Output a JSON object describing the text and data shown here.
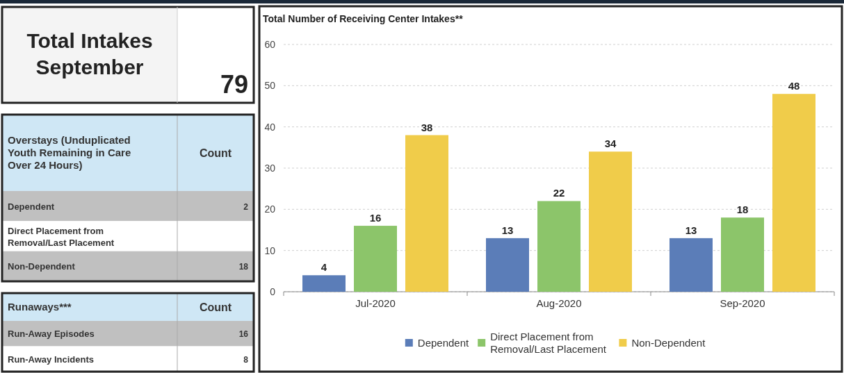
{
  "chart_data": [
    {
      "type": "other",
      "title": "Total Intakes September",
      "values": [
        79
      ],
      "data_labels": true
    },
    {
      "type": "other",
      "title": "Overstays (Unduplicated Youth Remaining in Care Over 24 Hours)",
      "annotations": [
        "Count"
      ],
      "categories": [
        "Dependent",
        "Direct Placement from Removal/Last Placement",
        "Non-Dependent"
      ],
      "values": [
        2,
        null,
        18
      ],
      "data_labels": true
    },
    {
      "type": "other",
      "title": "Runaways***",
      "annotations": [
        "Count"
      ],
      "categories": [
        "Run-Away Episodes",
        "Run-Away Incidents"
      ],
      "values": [
        16,
        8
      ],
      "data_labels": true
    },
    {
      "type": "bar",
      "title": "Total Number of Receiving Center Intakes**",
      "categories": [
        "Jul-2020",
        "Aug-2020",
        "Sep-2020"
      ],
      "series": [
        {
          "name": "Dependent",
          "color": "#5b7db8",
          "values": [
            4,
            13,
            13
          ]
        },
        {
          "name": "Direct Placement from Removal/Last Placement",
          "color": "#8cc56a",
          "values": [
            16,
            22,
            18
          ]
        },
        {
          "name": "Non-Dependent",
          "color": "#f0cc4a",
          "values": [
            38,
            34,
            48
          ]
        }
      ],
      "ylim": [
        0,
        60
      ],
      "yticks": [
        0,
        10,
        20,
        30,
        40,
        50,
        60
      ],
      "grid": "y",
      "legend": "bottom",
      "data_labels": true
    }
  ]
}
